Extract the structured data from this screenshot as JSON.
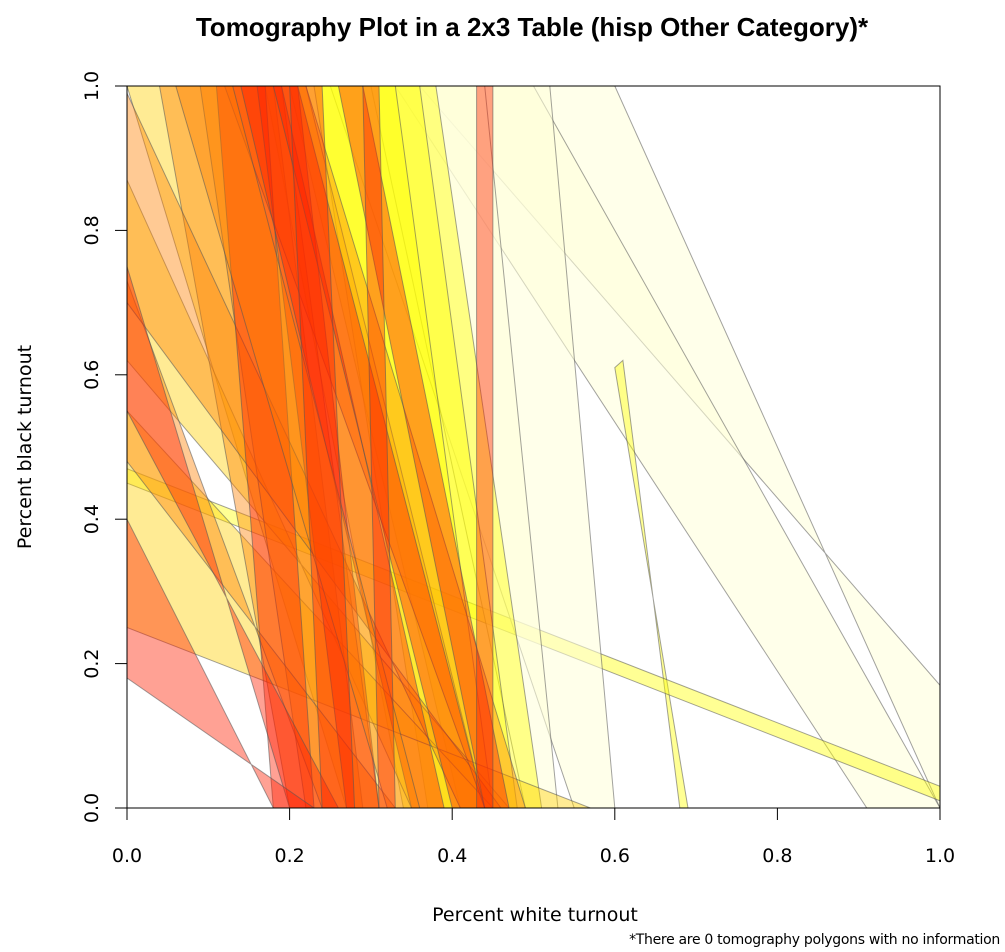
{
  "chart_data": {
    "type": "tomography",
    "title": "Tomography Plot in a 2x3 Table (hisp Other Category)*",
    "xlabel": "Percent white turnout",
    "ylabel": "Percent black turnout",
    "footnote": "*There are 0 tomography polygons with no information",
    "xlim": [
      0,
      1
    ],
    "ylim": [
      0,
      1
    ],
    "x_ticks": [
      "0.0",
      "0.2",
      "0.4",
      "0.6",
      "0.8",
      "1.0"
    ],
    "y_ticks": [
      "0.0",
      "0.2",
      "0.4",
      "0.6",
      "0.8",
      "1.0"
    ],
    "colors": {
      "light": "#ffffd8",
      "yellow": "#ffff00",
      "gold": "#ffd000",
      "orange": "#ff8000",
      "red": "#ff2000",
      "edge": "#555555"
    },
    "polygons": [
      {
        "name": "band-wide-right",
        "a": [
          0.36,
          1.0
        ],
        "b": [
          0.6,
          1.0
        ],
        "c": [
          1.0,
          0.17
        ],
        "d": [
          1.0,
          0.0
        ]
      },
      {
        "name": "band-mid-light",
        "a": [
          0.33,
          1.0
        ],
        "b": [
          0.5,
          1.0
        ],
        "c": [
          0.91,
          0.0
        ],
        "d": [
          1.0,
          0.0
        ]
      },
      {
        "name": "band-thin-top",
        "a": [
          0.6,
          0.61
        ],
        "b": [
          0.61,
          0.62
        ],
        "c": [
          0.69,
          0.0
        ],
        "d": [
          0.68,
          0.0
        ]
      },
      {
        "name": "band-long-flat",
        "a": [
          0.0,
          0.47
        ],
        "b": [
          0.0,
          0.45
        ],
        "c": [
          1.0,
          0.03
        ],
        "d": [
          1.0,
          0.01
        ]
      },
      {
        "name": "band-light-1",
        "a": [
          0.25,
          1.0
        ],
        "b": [
          0.52,
          1.0
        ],
        "c": [
          0.55,
          0.0
        ],
        "d": [
          0.6,
          0.0
        ]
      },
      {
        "name": "band-light-2",
        "a": [
          0.3,
          1.0
        ],
        "b": [
          0.44,
          1.0
        ],
        "c": [
          0.49,
          0.0
        ],
        "d": [
          0.53,
          0.0
        ]
      },
      {
        "name": "band-yellow-1",
        "a": [
          0.2,
          1.0
        ],
        "b": [
          0.38,
          1.0
        ],
        "c": [
          0.41,
          0.0
        ],
        "d": [
          0.51,
          0.0
        ]
      },
      {
        "name": "band-yellow-2",
        "a": [
          0.23,
          1.0
        ],
        "b": [
          0.36,
          1.0
        ],
        "c": [
          0.37,
          0.0
        ],
        "d": [
          0.48,
          0.0
        ]
      },
      {
        "name": "band-yellow-3",
        "a": [
          0.17,
          1.0
        ],
        "b": [
          0.33,
          1.0
        ],
        "c": [
          0.34,
          0.0
        ],
        "d": [
          0.45,
          0.0
        ]
      },
      {
        "name": "band-gold-1",
        "a": [
          0.0,
          1.0
        ],
        "b": [
          0.22,
          1.0
        ],
        "c": [
          0.27,
          0.0
        ],
        "d": [
          0.44,
          0.0
        ]
      },
      {
        "name": "band-gold-2",
        "a": [
          0.0,
          0.87
        ],
        "b": [
          0.0,
          0.62
        ],
        "c": [
          0.35,
          0.0
        ],
        "d": [
          0.47,
          0.0
        ]
      },
      {
        "name": "band-gold-3",
        "a": [
          0.0,
          0.55
        ],
        "b": [
          0.0,
          0.25
        ],
        "c": [
          0.45,
          0.0
        ],
        "d": [
          0.57,
          0.0
        ]
      },
      {
        "name": "band-orange-1",
        "a": [
          0.04,
          1.0
        ],
        "b": [
          0.18,
          1.0
        ],
        "c": [
          0.2,
          0.0
        ],
        "d": [
          0.29,
          0.0
        ]
      },
      {
        "name": "band-orange-2",
        "a": [
          0.09,
          1.0
        ],
        "b": [
          0.19,
          1.0
        ],
        "c": [
          0.22,
          0.0
        ],
        "d": [
          0.31,
          0.0
        ]
      },
      {
        "name": "band-orange-3",
        "a": [
          0.0,
          0.73
        ],
        "b": [
          0.0,
          0.48
        ],
        "c": [
          0.24,
          0.0
        ],
        "d": [
          0.33,
          0.0
        ]
      },
      {
        "name": "band-orange-4",
        "a": [
          0.0,
          0.99
        ],
        "b": [
          0.0,
          0.7
        ],
        "c": [
          0.41,
          0.0
        ],
        "d": [
          0.46,
          0.0
        ]
      },
      {
        "name": "band-orange-5",
        "a": [
          0.12,
          1.0
        ],
        "b": [
          0.22,
          1.0
        ],
        "c": [
          0.44,
          0.0
        ],
        "d": [
          0.49,
          0.0
        ]
      },
      {
        "name": "band-red-1",
        "a": [
          0.11,
          1.0
        ],
        "b": [
          0.17,
          1.0
        ],
        "c": [
          0.18,
          0.0
        ],
        "d": [
          0.23,
          0.0
        ]
      },
      {
        "name": "band-red-2",
        "a": [
          0.16,
          1.0
        ],
        "b": [
          0.21,
          1.0
        ],
        "c": [
          0.27,
          0.0
        ],
        "d": [
          0.31,
          0.0
        ]
      },
      {
        "name": "band-red-3",
        "a": [
          0.0,
          0.75
        ],
        "b": [
          0.0,
          0.55
        ],
        "c": [
          0.2,
          0.0
        ],
        "d": [
          0.26,
          0.0
        ]
      },
      {
        "name": "band-red-4",
        "a": [
          0.14,
          1.0
        ],
        "b": [
          0.19,
          1.0
        ],
        "c": [
          0.35,
          0.0
        ],
        "d": [
          0.39,
          0.0
        ]
      },
      {
        "name": "band-red-5",
        "a": [
          0.18,
          1.0
        ],
        "b": [
          0.21,
          1.0
        ],
        "c": [
          0.4,
          0.0
        ],
        "d": [
          0.44,
          0.0
        ]
      },
      {
        "name": "band-red-6",
        "a": [
          0.26,
          1.0
        ],
        "b": [
          0.29,
          1.0
        ],
        "c": [
          0.44,
          0.0
        ],
        "d": [
          0.47,
          0.0
        ]
      },
      {
        "name": "band-dark-1",
        "a": [
          0.0,
          0.4
        ],
        "b": [
          0.0,
          0.18
        ],
        "c": [
          0.18,
          0.0
        ],
        "d": [
          0.23,
          0.0
        ]
      },
      {
        "name": "band-dark-2",
        "a": [
          0.06,
          1.0
        ],
        "b": [
          0.13,
          1.0
        ],
        "c": [
          0.32,
          0.0
        ],
        "d": [
          0.36,
          0.0
        ]
      },
      {
        "name": "band-dark-3",
        "a": [
          0.2,
          1.0
        ],
        "b": [
          0.24,
          1.0
        ],
        "c": [
          0.24,
          0.0
        ],
        "d": [
          0.28,
          0.0
        ]
      },
      {
        "name": "band-dark-4",
        "a": [
          0.29,
          1.0
        ],
        "b": [
          0.31,
          1.0
        ],
        "c": [
          0.31,
          0.0
        ],
        "d": [
          0.33,
          0.0
        ]
      },
      {
        "name": "band-dark-5",
        "a": [
          0.43,
          1.0
        ],
        "b": [
          0.45,
          1.0
        ],
        "c": [
          0.43,
          0.0
        ],
        "d": [
          0.45,
          0.0
        ]
      }
    ]
  }
}
